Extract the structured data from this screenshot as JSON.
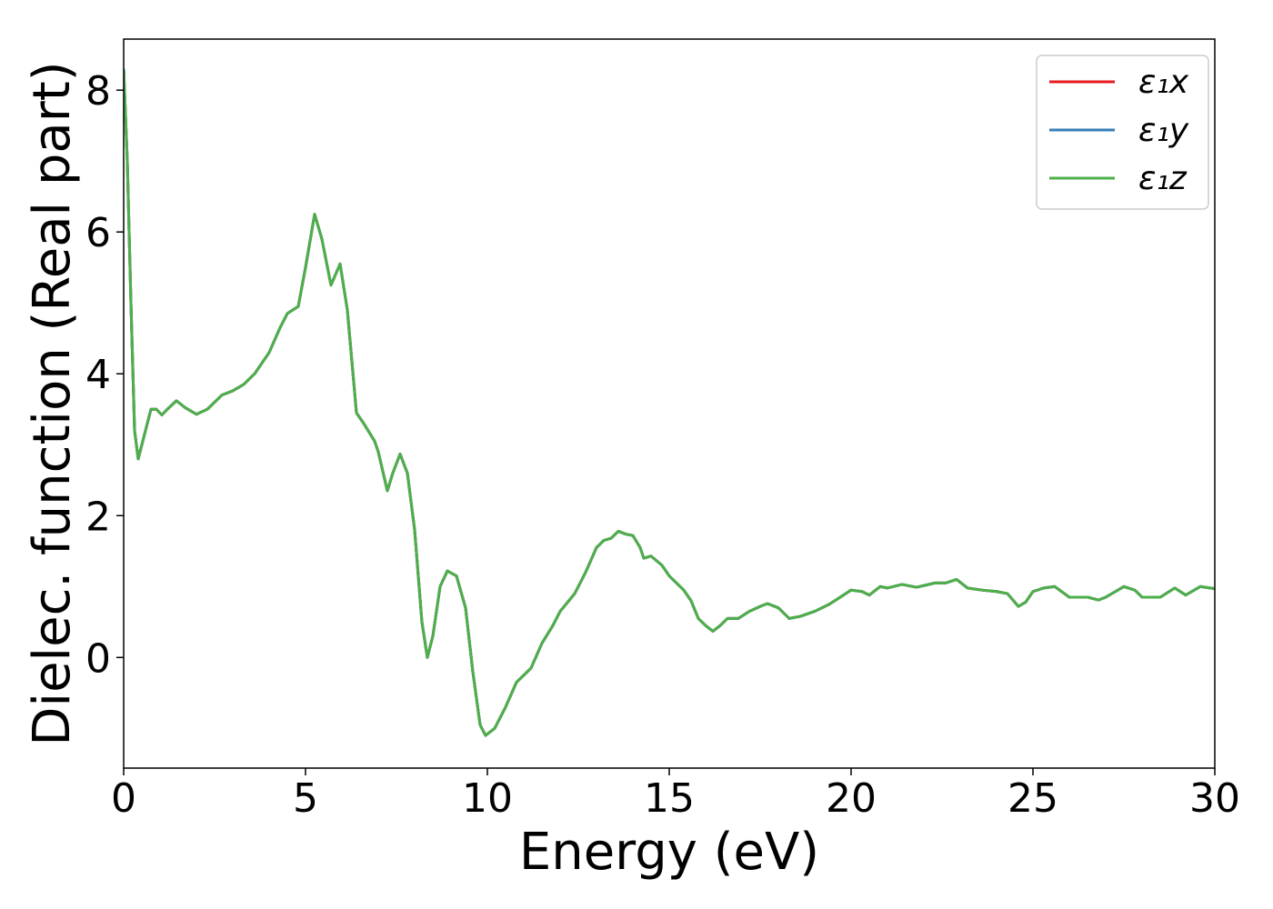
{
  "chart_data": {
    "type": "line",
    "xlabel": "Energy (eV)",
    "ylabel": "Dielec. function (Real part)",
    "x": [
      0,
      0.1,
      0.2,
      0.3,
      0.4,
      0.55,
      0.75,
      0.9,
      1.05,
      1.2,
      1.45,
      1.7,
      2.0,
      2.3,
      2.7,
      3.0,
      3.3,
      3.6,
      4.0,
      4.3,
      4.5,
      4.8,
      5.0,
      5.25,
      5.45,
      5.7,
      5.95,
      6.15,
      6.4,
      6.6,
      6.9,
      7.0,
      7.25,
      7.4,
      7.6,
      7.8,
      8.0,
      8.2,
      8.35,
      8.5,
      8.7,
      8.9,
      9.15,
      9.4,
      9.6,
      9.8,
      9.95,
      10.2,
      10.5,
      10.8,
      11.0,
      11.2,
      11.5,
      11.8,
      12.0,
      12.4,
      12.7,
      13.0,
      13.2,
      13.4,
      13.6,
      13.8,
      14.0,
      14.2,
      14.3,
      14.5,
      14.8,
      15.0,
      15.4,
      15.6,
      15.8,
      16.0,
      16.2,
      16.4,
      16.6,
      16.9,
      17.2,
      17.5,
      17.7,
      18.0,
      18.3,
      18.6,
      19.0,
      19.4,
      19.7,
      20.0,
      20.3,
      20.5,
      20.8,
      21.0,
      21.4,
      21.8,
      22.3,
      22.6,
      22.9,
      23.2,
      23.6,
      24.0,
      24.3,
      24.6,
      24.8,
      25.0,
      25.3,
      25.6,
      26.0,
      26.5,
      26.8,
      27.0,
      27.5,
      27.8,
      28.0,
      28.5,
      28.9,
      29.2,
      29.6,
      30.0
    ],
    "series": [
      {
        "name": "ε₁x",
        "color": "#e41a1c",
        "values": [
          8.3,
          7.0,
          5.0,
          3.2,
          2.8,
          3.1,
          3.5,
          3.5,
          3.42,
          3.5,
          3.62,
          3.52,
          3.43,
          3.5,
          3.7,
          3.76,
          3.85,
          4.0,
          4.3,
          4.65,
          4.85,
          4.95,
          5.5,
          6.25,
          5.9,
          5.25,
          5.55,
          4.9,
          3.45,
          3.3,
          3.05,
          2.9,
          2.35,
          2.6,
          2.87,
          2.6,
          1.8,
          0.5,
          0,
          0.3,
          1.0,
          1.22,
          1.15,
          0.7,
          -0.2,
          -0.95,
          -1.1,
          -1.0,
          -0.7,
          -0.35,
          -0.25,
          -0.15,
          0.2,
          0.45,
          0.65,
          0.9,
          1.2,
          1.55,
          1.65,
          1.68,
          1.78,
          1.74,
          1.72,
          1.55,
          1.4,
          1.43,
          1.3,
          1.15,
          0.95,
          0.8,
          0.55,
          0.45,
          0.37,
          0.45,
          0.55,
          0.55,
          0.65,
          0.72,
          0.76,
          0.7,
          0.55,
          0.58,
          0.65,
          0.75,
          0.85,
          0.95,
          0.93,
          0.88,
          1.0,
          0.98,
          1.03,
          0.99,
          1.05,
          1.05,
          1.1,
          0.98,
          0.95,
          0.93,
          0.9,
          0.72,
          0.78,
          0.93,
          0.98,
          1.0,
          0.85,
          0.85,
          0.81,
          0.85,
          1.0,
          0.95,
          0.85,
          0.85,
          0.98,
          0.88,
          1.0,
          0.97
        ]
      },
      {
        "name": "ε₁y",
        "color": "#377eb8",
        "values": [
          8.3,
          7.0,
          5.0,
          3.2,
          2.8,
          3.1,
          3.5,
          3.5,
          3.42,
          3.5,
          3.62,
          3.52,
          3.43,
          3.5,
          3.7,
          3.76,
          3.85,
          4.0,
          4.3,
          4.65,
          4.85,
          4.95,
          5.5,
          6.25,
          5.9,
          5.25,
          5.55,
          4.9,
          3.45,
          3.3,
          3.05,
          2.9,
          2.35,
          2.6,
          2.87,
          2.6,
          1.8,
          0.5,
          0,
          0.3,
          1.0,
          1.22,
          1.15,
          0.7,
          -0.2,
          -0.95,
          -1.1,
          -1.0,
          -0.7,
          -0.35,
          -0.25,
          -0.15,
          0.2,
          0.45,
          0.65,
          0.9,
          1.2,
          1.55,
          1.65,
          1.68,
          1.78,
          1.74,
          1.72,
          1.55,
          1.4,
          1.43,
          1.3,
          1.15,
          0.95,
          0.8,
          0.55,
          0.45,
          0.37,
          0.45,
          0.55,
          0.55,
          0.65,
          0.72,
          0.76,
          0.7,
          0.55,
          0.58,
          0.65,
          0.75,
          0.85,
          0.95,
          0.93,
          0.88,
          1.0,
          0.98,
          1.03,
          0.99,
          1.05,
          1.05,
          1.1,
          0.98,
          0.95,
          0.93,
          0.9,
          0.72,
          0.78,
          0.93,
          0.98,
          1.0,
          0.85,
          0.85,
          0.81,
          0.85,
          1.0,
          0.95,
          0.85,
          0.85,
          0.98,
          0.88,
          1.0,
          0.97
        ]
      },
      {
        "name": "ε₁z",
        "color": "#4daf4a",
        "values": [
          8.3,
          7.0,
          5.0,
          3.2,
          2.8,
          3.1,
          3.5,
          3.5,
          3.42,
          3.5,
          3.62,
          3.52,
          3.43,
          3.5,
          3.7,
          3.76,
          3.85,
          4.0,
          4.3,
          4.65,
          4.85,
          4.95,
          5.5,
          6.25,
          5.9,
          5.25,
          5.55,
          4.9,
          3.45,
          3.3,
          3.05,
          2.9,
          2.35,
          2.6,
          2.87,
          2.6,
          1.8,
          0.5,
          0,
          0.3,
          1.0,
          1.22,
          1.15,
          0.7,
          -0.2,
          -0.95,
          -1.1,
          -1.0,
          -0.7,
          -0.35,
          -0.25,
          -0.15,
          0.2,
          0.45,
          0.65,
          0.9,
          1.2,
          1.55,
          1.65,
          1.68,
          1.78,
          1.74,
          1.72,
          1.55,
          1.4,
          1.43,
          1.3,
          1.15,
          0.95,
          0.8,
          0.55,
          0.45,
          0.37,
          0.45,
          0.55,
          0.55,
          0.65,
          0.72,
          0.76,
          0.7,
          0.55,
          0.58,
          0.65,
          0.75,
          0.85,
          0.95,
          0.93,
          0.88,
          1.0,
          0.98,
          1.03,
          0.99,
          1.05,
          1.05,
          1.1,
          0.98,
          0.95,
          0.93,
          0.9,
          0.72,
          0.78,
          0.93,
          0.98,
          1.0,
          0.85,
          0.85,
          0.81,
          0.85,
          1.0,
          0.95,
          0.85,
          0.85,
          0.98,
          0.88,
          1.0,
          0.97
        ]
      }
    ],
    "xlim": [
      0,
      30
    ],
    "xticks": [
      0,
      5,
      10,
      15,
      20,
      25,
      30
    ],
    "ylim": [
      -1.56,
      8.72
    ],
    "yticks": [
      0,
      2,
      4,
      6,
      8
    ],
    "grid": false,
    "legend": "upper right"
  }
}
